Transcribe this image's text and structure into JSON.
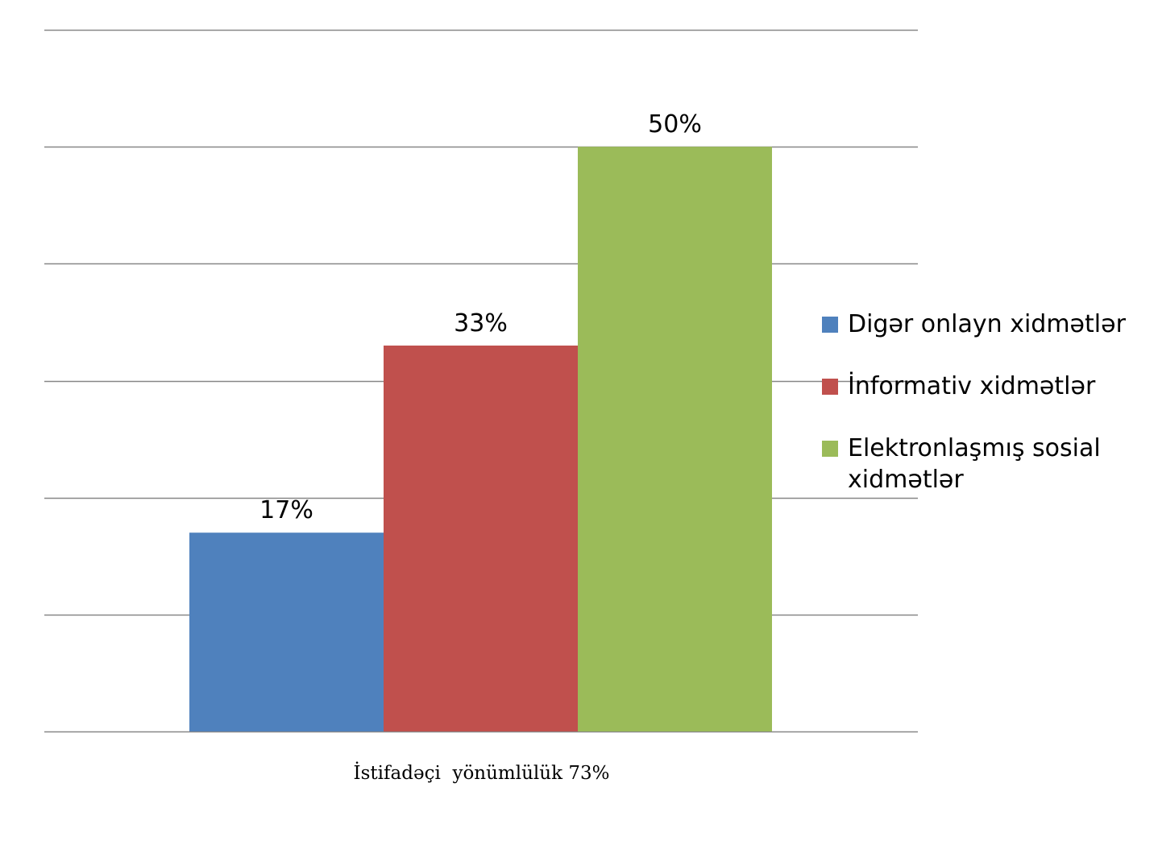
{
  "chart_data": {
    "type": "bar",
    "categories": [
      "İstifadəçi  yönümlülük 73%"
    ],
    "series": [
      {
        "name": "Digər onlayn xidmətlər",
        "values": [
          17
        ],
        "color": "#4F81BD",
        "label": "17%"
      },
      {
        "name": "İnformativ xidmətlər",
        "values": [
          33
        ],
        "color": "#C0504D",
        "label": "33%"
      },
      {
        "name": "Elektronlaşmış sosial xidmətlər",
        "values": [
          50
        ],
        "color": "#9BBB59",
        "label": "50%"
      }
    ],
    "ylim": [
      0,
      60
    ],
    "y_gridlines": [
      0,
      10,
      20,
      30,
      40,
      50,
      60
    ],
    "grid": true,
    "y_tick_labels_shown": false,
    "legend_position": "right",
    "gridline_color": "#878787"
  }
}
